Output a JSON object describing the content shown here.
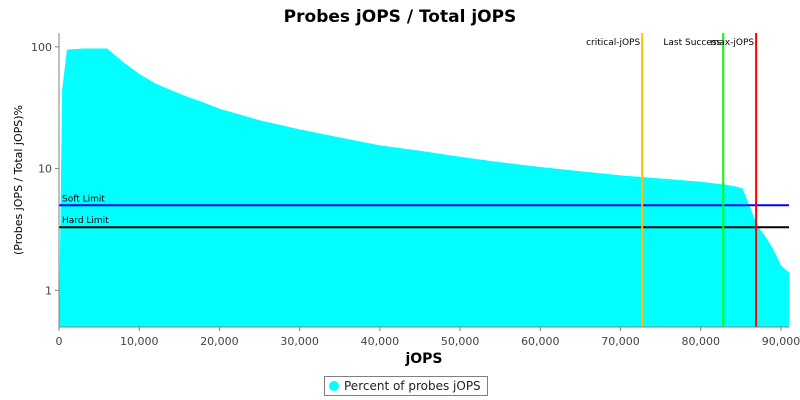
{
  "chart_data": {
    "type": "area",
    "title": "Probes jOPS / Total jOPS",
    "xlabel": "jOPS",
    "ylabel": "(Probes jOPS / Total jOPS)%",
    "xlim": [
      0,
      91000
    ],
    "ylim": [
      0.5,
      130
    ],
    "y_scale": "log",
    "grid": false,
    "legend_position": "bottom-center",
    "x_ticks": [
      0,
      10000,
      20000,
      30000,
      40000,
      50000,
      60000,
      70000,
      80000,
      90000
    ],
    "x_tick_labels": [
      "0",
      "10,000",
      "20,000",
      "30,000",
      "40,000",
      "50,000",
      "60,000",
      "70,000",
      "80,000",
      "90,000"
    ],
    "y_ticks": [
      1,
      10,
      100
    ],
    "y_tick_labels": [
      "1",
      "10",
      "100"
    ],
    "series": [
      {
        "name": "Percent of probes jOPS",
        "color": "#00ffff",
        "x": [
          0,
          400,
          1000,
          3000,
          6000,
          8000,
          10000,
          12000,
          14000,
          16000,
          18000,
          20000,
          25000,
          30000,
          35000,
          40000,
          45000,
          50000,
          55000,
          60000,
          65000,
          70000,
          75000,
          80000,
          82000,
          83000,
          84500,
          85200,
          85800,
          86500,
          87200,
          88000,
          89000,
          90000,
          91000
        ],
        "y": [
          0.5,
          45,
          95,
          97,
          97,
          75,
          60,
          50,
          44,
          39,
          35,
          31,
          25,
          21,
          18,
          15.5,
          14,
          12.5,
          11.3,
          10.3,
          9.5,
          8.8,
          8.3,
          7.8,
          7.5,
          7.4,
          7.1,
          6.9,
          5.5,
          4.2,
          3.3,
          2.8,
          2.2,
          1.6,
          1.4
        ]
      }
    ],
    "horizontal_lines": [
      {
        "label": "Soft Limit",
        "value": 5,
        "color": "#0000ff"
      },
      {
        "label": "Hard Limit",
        "value": 3.3,
        "color": "#000000"
      }
    ],
    "vertical_lines": [
      {
        "label": "critical-jOPS",
        "value": 72700,
        "color": "#ffc000"
      },
      {
        "label": "Last Success",
        "value": 82800,
        "color": "#00ff00"
      },
      {
        "label": "max-jOPS",
        "value": 86900,
        "color": "#ff0000"
      }
    ]
  }
}
